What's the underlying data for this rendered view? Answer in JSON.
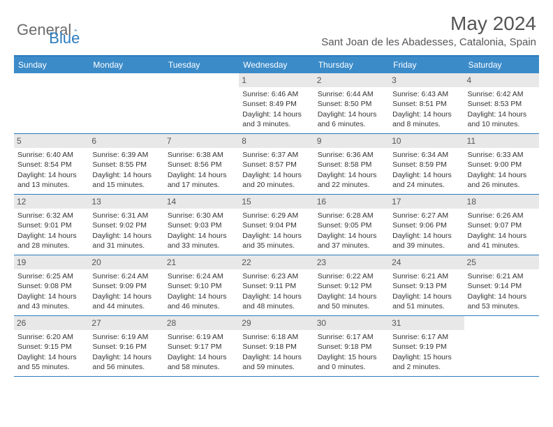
{
  "brand": {
    "part1": "General",
    "part2": "Blue"
  },
  "title": "May 2024",
  "location": "Sant Joan de les Abadesses, Catalonia, Spain",
  "dayNames": [
    "Sunday",
    "Monday",
    "Tuesday",
    "Wednesday",
    "Thursday",
    "Friday",
    "Saturday"
  ],
  "colors": {
    "headerBar": "#3b8bc9",
    "accent": "#2b7bbf",
    "dayNumBg": "#e8e8e8",
    "text": "#333333"
  },
  "weeks": [
    [
      null,
      null,
      null,
      {
        "n": "1",
        "sr": "6:46 AM",
        "ss": "8:49 PM",
        "d1": "Daylight: 14 hours",
        "d2": "and 3 minutes."
      },
      {
        "n": "2",
        "sr": "6:44 AM",
        "ss": "8:50 PM",
        "d1": "Daylight: 14 hours",
        "d2": "and 6 minutes."
      },
      {
        "n": "3",
        "sr": "6:43 AM",
        "ss": "8:51 PM",
        "d1": "Daylight: 14 hours",
        "d2": "and 8 minutes."
      },
      {
        "n": "4",
        "sr": "6:42 AM",
        "ss": "8:53 PM",
        "d1": "Daylight: 14 hours",
        "d2": "and 10 minutes."
      }
    ],
    [
      {
        "n": "5",
        "sr": "6:40 AM",
        "ss": "8:54 PM",
        "d1": "Daylight: 14 hours",
        "d2": "and 13 minutes."
      },
      {
        "n": "6",
        "sr": "6:39 AM",
        "ss": "8:55 PM",
        "d1": "Daylight: 14 hours",
        "d2": "and 15 minutes."
      },
      {
        "n": "7",
        "sr": "6:38 AM",
        "ss": "8:56 PM",
        "d1": "Daylight: 14 hours",
        "d2": "and 17 minutes."
      },
      {
        "n": "8",
        "sr": "6:37 AM",
        "ss": "8:57 PM",
        "d1": "Daylight: 14 hours",
        "d2": "and 20 minutes."
      },
      {
        "n": "9",
        "sr": "6:36 AM",
        "ss": "8:58 PM",
        "d1": "Daylight: 14 hours",
        "d2": "and 22 minutes."
      },
      {
        "n": "10",
        "sr": "6:34 AM",
        "ss": "8:59 PM",
        "d1": "Daylight: 14 hours",
        "d2": "and 24 minutes."
      },
      {
        "n": "11",
        "sr": "6:33 AM",
        "ss": "9:00 PM",
        "d1": "Daylight: 14 hours",
        "d2": "and 26 minutes."
      }
    ],
    [
      {
        "n": "12",
        "sr": "6:32 AM",
        "ss": "9:01 PM",
        "d1": "Daylight: 14 hours",
        "d2": "and 28 minutes."
      },
      {
        "n": "13",
        "sr": "6:31 AM",
        "ss": "9:02 PM",
        "d1": "Daylight: 14 hours",
        "d2": "and 31 minutes."
      },
      {
        "n": "14",
        "sr": "6:30 AM",
        "ss": "9:03 PM",
        "d1": "Daylight: 14 hours",
        "d2": "and 33 minutes."
      },
      {
        "n": "15",
        "sr": "6:29 AM",
        "ss": "9:04 PM",
        "d1": "Daylight: 14 hours",
        "d2": "and 35 minutes."
      },
      {
        "n": "16",
        "sr": "6:28 AM",
        "ss": "9:05 PM",
        "d1": "Daylight: 14 hours",
        "d2": "and 37 minutes."
      },
      {
        "n": "17",
        "sr": "6:27 AM",
        "ss": "9:06 PM",
        "d1": "Daylight: 14 hours",
        "d2": "and 39 minutes."
      },
      {
        "n": "18",
        "sr": "6:26 AM",
        "ss": "9:07 PM",
        "d1": "Daylight: 14 hours",
        "d2": "and 41 minutes."
      }
    ],
    [
      {
        "n": "19",
        "sr": "6:25 AM",
        "ss": "9:08 PM",
        "d1": "Daylight: 14 hours",
        "d2": "and 43 minutes."
      },
      {
        "n": "20",
        "sr": "6:24 AM",
        "ss": "9:09 PM",
        "d1": "Daylight: 14 hours",
        "d2": "and 44 minutes."
      },
      {
        "n": "21",
        "sr": "6:24 AM",
        "ss": "9:10 PM",
        "d1": "Daylight: 14 hours",
        "d2": "and 46 minutes."
      },
      {
        "n": "22",
        "sr": "6:23 AM",
        "ss": "9:11 PM",
        "d1": "Daylight: 14 hours",
        "d2": "and 48 minutes."
      },
      {
        "n": "23",
        "sr": "6:22 AM",
        "ss": "9:12 PM",
        "d1": "Daylight: 14 hours",
        "d2": "and 50 minutes."
      },
      {
        "n": "24",
        "sr": "6:21 AM",
        "ss": "9:13 PM",
        "d1": "Daylight: 14 hours",
        "d2": "and 51 minutes."
      },
      {
        "n": "25",
        "sr": "6:21 AM",
        "ss": "9:14 PM",
        "d1": "Daylight: 14 hours",
        "d2": "and 53 minutes."
      }
    ],
    [
      {
        "n": "26",
        "sr": "6:20 AM",
        "ss": "9:15 PM",
        "d1": "Daylight: 14 hours",
        "d2": "and 55 minutes."
      },
      {
        "n": "27",
        "sr": "6:19 AM",
        "ss": "9:16 PM",
        "d1": "Daylight: 14 hours",
        "d2": "and 56 minutes."
      },
      {
        "n": "28",
        "sr": "6:19 AM",
        "ss": "9:17 PM",
        "d1": "Daylight: 14 hours",
        "d2": "and 58 minutes."
      },
      {
        "n": "29",
        "sr": "6:18 AM",
        "ss": "9:18 PM",
        "d1": "Daylight: 14 hours",
        "d2": "and 59 minutes."
      },
      {
        "n": "30",
        "sr": "6:17 AM",
        "ss": "9:18 PM",
        "d1": "Daylight: 15 hours",
        "d2": "and 0 minutes."
      },
      {
        "n": "31",
        "sr": "6:17 AM",
        "ss": "9:19 PM",
        "d1": "Daylight: 15 hours",
        "d2": "and 2 minutes."
      },
      null
    ]
  ],
  "labels": {
    "sunrise": "Sunrise: ",
    "sunset": "Sunset: "
  }
}
